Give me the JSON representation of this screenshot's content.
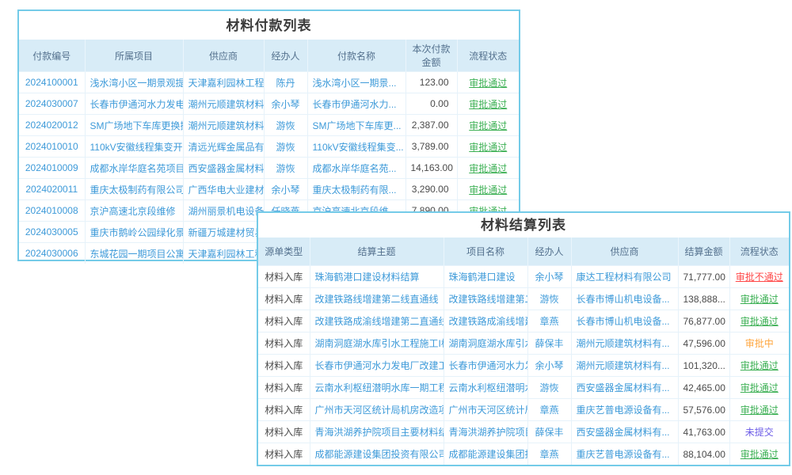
{
  "colors": {
    "panel_border": "#74cbe8",
    "header_bg": "#d8ecf7",
    "header_text": "#54718e",
    "link": "#3d9ad9",
    "text": "#4a4a4a",
    "status_pass": "#3cb054",
    "status_fail": "#ff4848",
    "status_pending": "#ffa63e",
    "status_unsubmitted": "#6c5ce7"
  },
  "status_styles": {
    "pass": {
      "color": "#3cb054",
      "underline": true
    },
    "fail": {
      "color": "#ff4848",
      "underline": true
    },
    "pending": {
      "color": "#ffa63e",
      "underline": false
    },
    "unsubmitted": {
      "color": "#6c5ce7",
      "underline": false
    }
  },
  "payment_table": {
    "title": "材料付款列表",
    "columns": [
      {
        "key": "payment-no",
        "label": "付款编号",
        "type": "link",
        "align": "center"
      },
      {
        "key": "project",
        "label": "所属项目",
        "type": "link",
        "align": "left"
      },
      {
        "key": "supplier",
        "label": "供应商",
        "type": "link",
        "align": "left"
      },
      {
        "key": "handler",
        "label": "经办人",
        "type": "link",
        "align": "center"
      },
      {
        "key": "payment-name",
        "label": "付款名称",
        "type": "link",
        "align": "left"
      },
      {
        "key": "amount",
        "label": "本次付款金额",
        "type": "amount",
        "align": "right"
      },
      {
        "key": "status",
        "label": "流程状态",
        "type": "status",
        "align": "center"
      }
    ],
    "rows": [
      {
        "cells": [
          "2024100001",
          "浅水湾小区一期景观提...",
          "天津嘉利园林工程有限...",
          "陈丹",
          "浅水湾小区一期景...",
          "123.00"
        ],
        "status": {
          "label": "审批通过",
          "type": "pass"
        }
      },
      {
        "cells": [
          "2024030007",
          "长春市伊通河水力发电...",
          "潮州元顺建筑材料有限...",
          "余小琴",
          "长春市伊通河水力...",
          "0.00"
        ],
        "status": {
          "label": "审批通过",
          "type": "pass"
        }
      },
      {
        "cells": [
          "2024020012",
          "SM广场地下车库更换摄...",
          "潮州元顺建筑材料有限...",
          "游恢",
          "SM广场地下车库更...",
          "2,387.00"
        ],
        "status": {
          "label": "审批通过",
          "type": "pass"
        }
      },
      {
        "cells": [
          "2024010010",
          "110kV安徽线程集变开断...",
          "清远光辉金属品有限公司",
          "游恢",
          "110kV安徽线程集变...",
          "3,789.00"
        ],
        "status": {
          "label": "审批通过",
          "type": "pass"
        }
      },
      {
        "cells": [
          "2024010009",
          "成都水岸华庭名苑项目...",
          "西安盛器金属材料有限...",
          "游恢",
          "成都水岸华庭名苑...",
          "14,163.00"
        ],
        "status": {
          "label": "审批通过",
          "type": "pass"
        }
      },
      {
        "cells": [
          "2024020011",
          "重庆太极制药有限公司...",
          "广西华电大业建材有限...",
          "余小琴",
          "重庆太极制药有限...",
          "3,290.00"
        ],
        "status": {
          "label": "审批通过",
          "type": "pass"
        }
      },
      {
        "cells": [
          "2024010008",
          "京沪高速北京段维修",
          "湖州丽景机电设备有限...",
          "任晓燕",
          "京沪高速北京段维...",
          "7,890.00"
        ],
        "status": {
          "label": "审批通过",
          "type": "pass"
        }
      },
      {
        "cells": [
          "2024030005",
          "重庆市鹅岭公园绿化景...",
          "新疆万城建材贸易有...",
          "",
          "",
          ""
        ],
        "status": null
      },
      {
        "cells": [
          "2024030006",
          "东城花园一期项目公寓...",
          "天津嘉利园林工程有...",
          "",
          "",
          ""
        ],
        "status": null
      }
    ]
  },
  "settlement_table": {
    "title": "材料结算列表",
    "columns": [
      {
        "key": "source-type",
        "label": "源单类型",
        "type": "text",
        "align": "center"
      },
      {
        "key": "settlement-subject",
        "label": "结算主题",
        "type": "link",
        "align": "left"
      },
      {
        "key": "project-name",
        "label": "项目名称",
        "type": "link",
        "align": "left"
      },
      {
        "key": "handler",
        "label": "经办人",
        "type": "link",
        "align": "center"
      },
      {
        "key": "supplier",
        "label": "供应商",
        "type": "link",
        "align": "left"
      },
      {
        "key": "amount",
        "label": "结算金额",
        "type": "amount",
        "align": "right"
      },
      {
        "key": "status",
        "label": "流程状态",
        "type": "status",
        "align": "center"
      }
    ],
    "rows": [
      {
        "cells": [
          "材料入库",
          "珠海鹤港口建设材料结算",
          "珠海鹤港口建设",
          "余小琴",
          "康达工程材料有限公司",
          "71,777.00"
        ],
        "status": {
          "label": "审批不通过",
          "type": "fail"
        }
      },
      {
        "cells": [
          "材料入库",
          "改建铁路线增建第二线直通线（成...",
          "改建铁路线增建第二线直...",
          "游恢",
          "长春市博山机电设备...",
          "138,888..."
        ],
        "status": {
          "label": "审批通过",
          "type": "pass"
        }
      },
      {
        "cells": [
          "材料入库",
          "改建铁路成渝线增建第二直通线（...",
          "改建铁路成渝线增建第二...",
          "章燕",
          "长春市博山机电设备...",
          "76,877.00"
        ],
        "status": {
          "label": "审批通过",
          "type": "pass"
        }
      },
      {
        "cells": [
          "材料入库",
          "湖南洞庭湖水库引水工程施工I标材...",
          "湖南洞庭湖水库引水工程...",
          "薛保丰",
          "潮州元顺建筑材料有...",
          "47,596.00"
        ],
        "status": {
          "label": "审批中",
          "type": "pending"
        }
      },
      {
        "cells": [
          "材料入库",
          "长春市伊通河水力发电厂改建工程...",
          "长春市伊通河水力发电厂...",
          "余小琴",
          "潮州元顺建筑材料有...",
          "101,320..."
        ],
        "status": {
          "label": "审批通过",
          "type": "pass"
        }
      },
      {
        "cells": [
          "材料入库",
          "云南水利枢纽潜明水库一期工程施...",
          "云南水利枢纽潜明水库一...",
          "游恢",
          "西安盛器金属材料有...",
          "42,465.00"
        ],
        "status": {
          "label": "审批通过",
          "type": "pass"
        }
      },
      {
        "cells": [
          "材料入库",
          "广州市天河区统计局机房改造项目...",
          "广州市天河区统计局机房...",
          "章燕",
          "重庆艺普电源设备有...",
          "57,576.00"
        ],
        "status": {
          "label": "审批通过",
          "type": "pass"
        }
      },
      {
        "cells": [
          "材料入库",
          "青海洪湖养护院项目主要材料结算",
          "青海洪湖养护院项目",
          "薛保丰",
          "西安盛器金属材料有...",
          "41,763.00"
        ],
        "status": {
          "label": "未提交",
          "type": "unsubmitted"
        }
      },
      {
        "cells": [
          "材料入库",
          "成都能源建设集团投资有限公司临...",
          "成都能源建设集团投资有...",
          "章燕",
          "重庆艺普电源设备有...",
          "88,104.00"
        ],
        "status": {
          "label": "审批通过",
          "type": "pass"
        }
      }
    ]
  }
}
